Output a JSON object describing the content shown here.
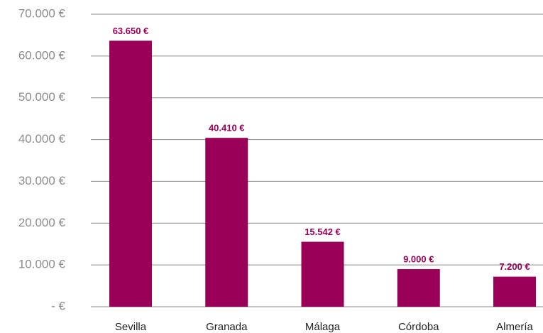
{
  "chart_data": {
    "type": "bar",
    "categories": [
      "Sevilla",
      "Granada",
      "Málaga",
      "Córdoba",
      "Almería"
    ],
    "values": [
      63650,
      40410,
      15542,
      9000,
      7200
    ],
    "value_labels": [
      "63.650 €",
      "40.410 €",
      "15.542 €",
      "9.000 €",
      "7.200 €"
    ],
    "color": "#9b0059",
    "ylim": [
      0,
      70000
    ],
    "yticks": [
      {
        "value": 0,
        "label": "- €"
      },
      {
        "value": 10000,
        "label": "10.000 €"
      },
      {
        "value": 20000,
        "label": "20.000 €"
      },
      {
        "value": 30000,
        "label": "30.000 €"
      },
      {
        "value": 40000,
        "label": "40.000 €"
      },
      {
        "value": 50000,
        "label": "50.000 €"
      },
      {
        "value": 60000,
        "label": "60.000 €"
      },
      {
        "value": 70000,
        "label": "70.000 €"
      }
    ],
    "grid": true
  }
}
